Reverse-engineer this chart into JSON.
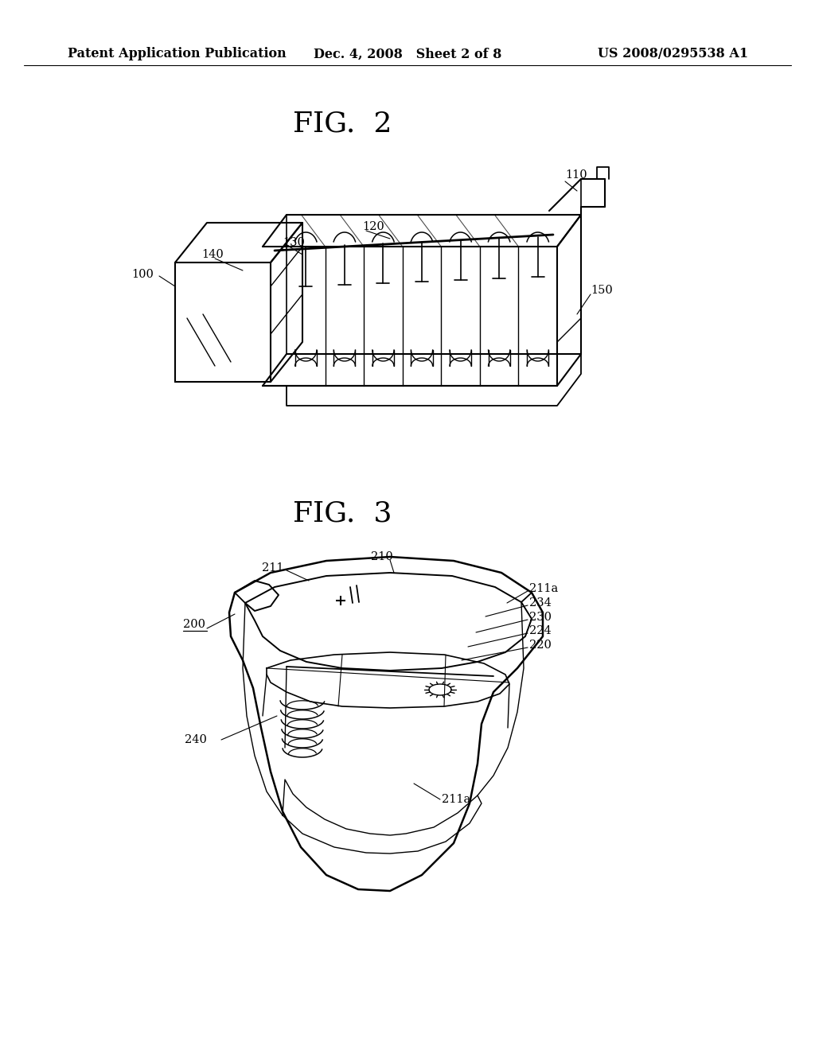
{
  "background_color": "#ffffff",
  "header": {
    "left_text": "Patent Application Publication",
    "center_text": "Dec. 4, 2008   Sheet 2 of 8",
    "right_text": "US 2008/0295538 A1",
    "font_size": 11.5
  },
  "fig2_title": "FIG.  2",
  "fig3_title": "FIG.  3",
  "label_fontsize": 10.5
}
